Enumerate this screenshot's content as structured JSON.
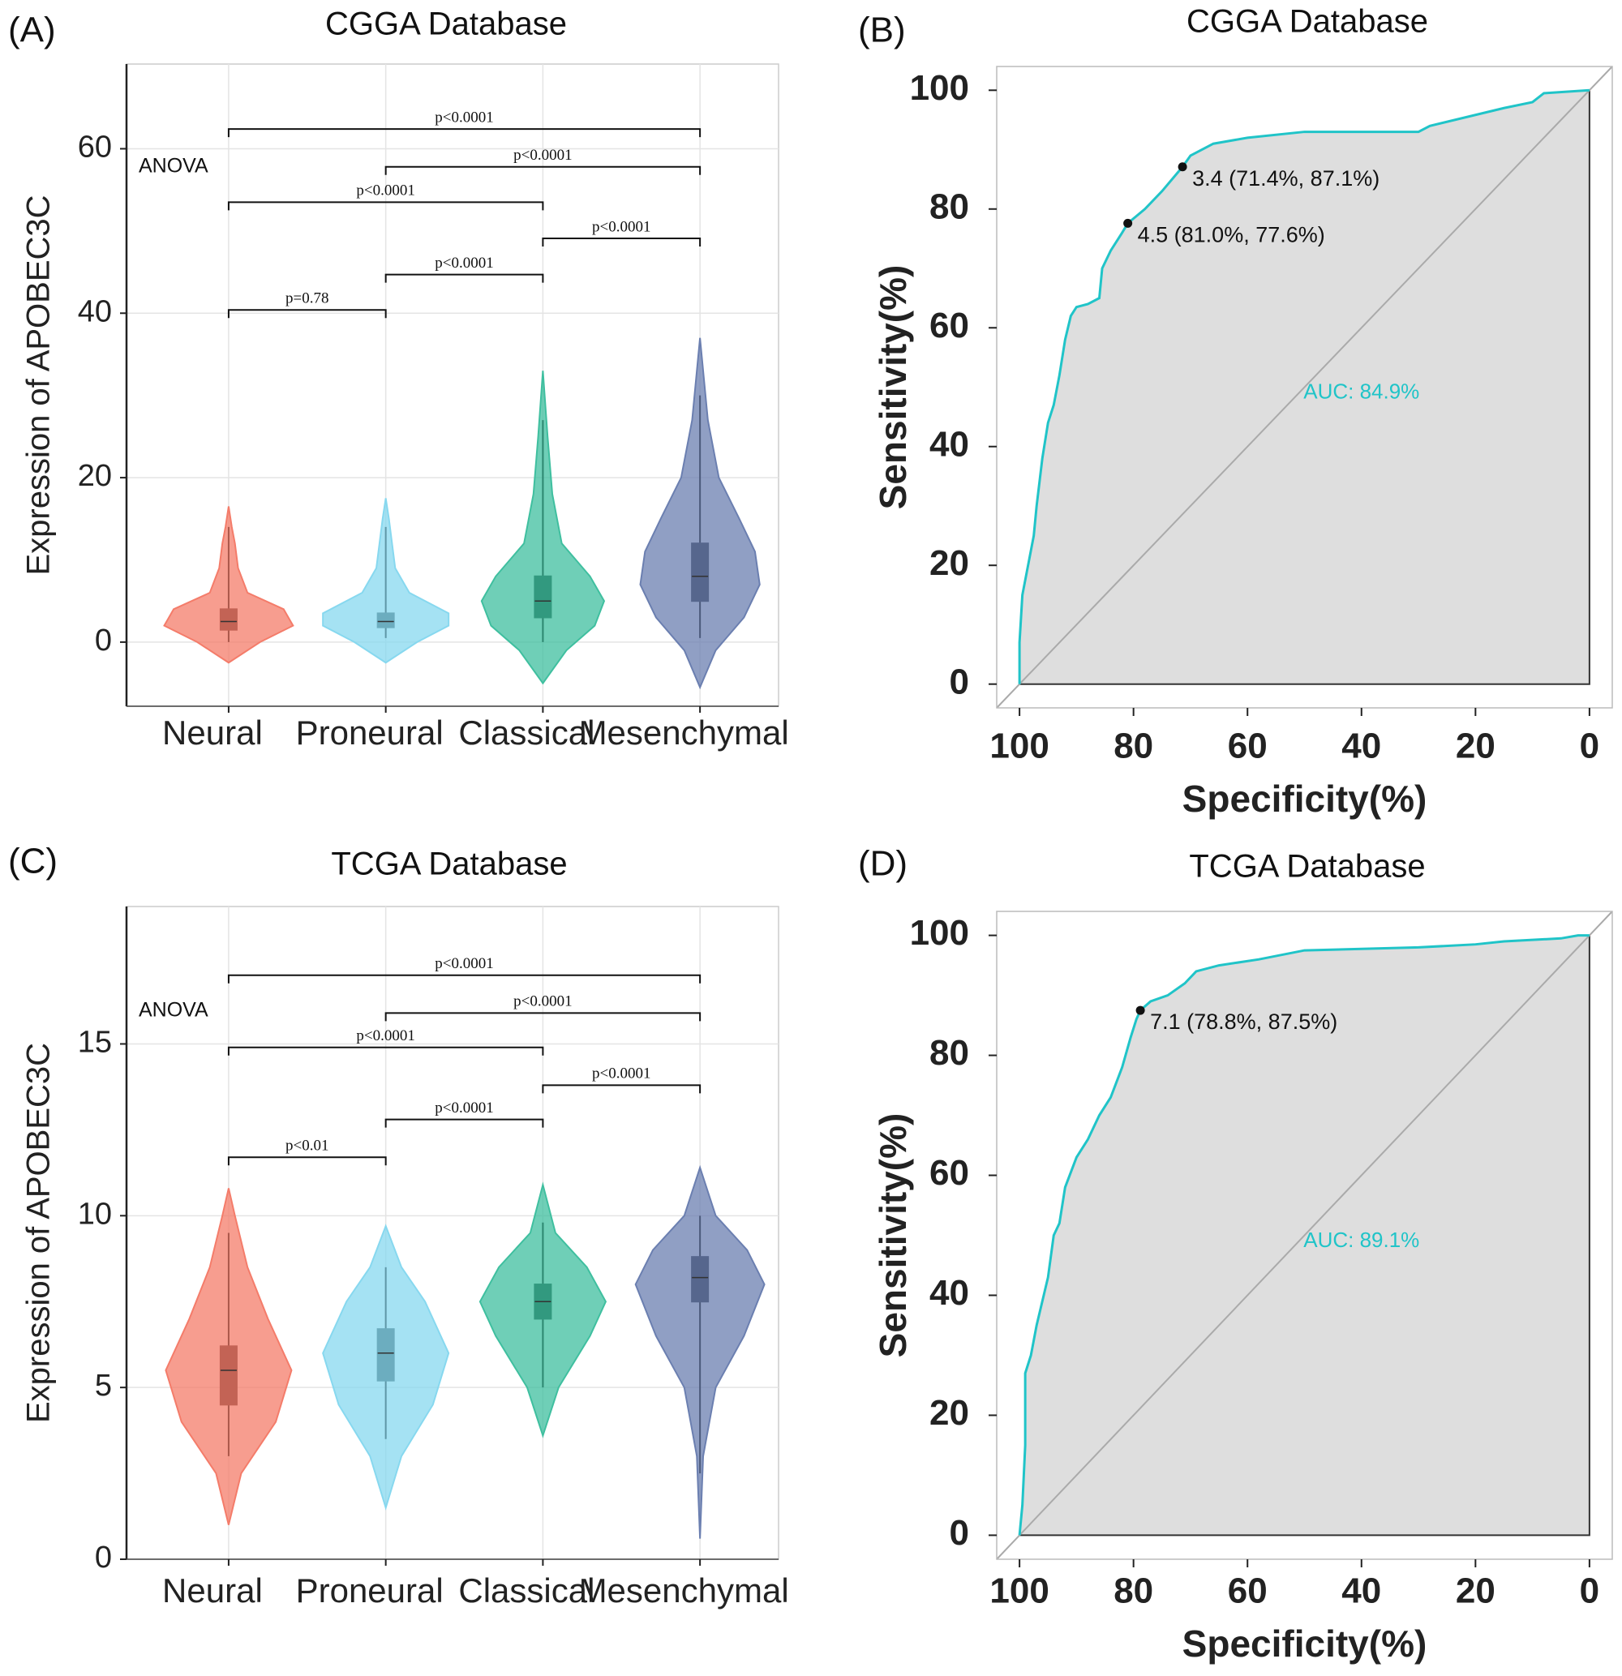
{
  "chart_data": [
    {
      "type": "violin",
      "panel_label": "(A)",
      "title": "CGGA Database",
      "y_label": "Expression of APOBEC3C",
      "annotation": "ANOVA",
      "grid": true,
      "categories": [
        "Neural",
        "Proneural",
        "Classical",
        "Mesenchymal"
      ],
      "colors": [
        "#f47c6a",
        "#87d8ef",
        "#3fbf9f",
        "#6b7fb0"
      ],
      "ylim": [
        -7.8,
        70.3
      ],
      "yticks": [
        0,
        20,
        40,
        60
      ],
      "violins": [
        {
          "y": [
            -2.5,
            0,
            2,
            4,
            6,
            9,
            12,
            14,
            16.5
          ],
          "width": [
            0,
            0.2,
            0.41,
            0.35,
            0.12,
            0.06,
            0.04,
            0.02,
            0
          ],
          "box": [
            0,
            1.5,
            2.5,
            4,
            14
          ]
        },
        {
          "y": [
            -2.5,
            0,
            2,
            3.5,
            6,
            9,
            12,
            15,
            17.5
          ],
          "width": [
            0,
            0.2,
            0.4,
            0.4,
            0.15,
            0.06,
            0.04,
            0.02,
            0
          ],
          "box": [
            0.5,
            1.8,
            2.5,
            3.5,
            14
          ]
        },
        {
          "y": [
            -5,
            -1,
            2,
            5,
            8,
            12,
            18,
            25,
            33
          ],
          "width": [
            0,
            0.15,
            0.33,
            0.39,
            0.3,
            0.12,
            0.06,
            0.03,
            0
          ],
          "box": [
            0,
            3,
            5,
            8,
            27
          ]
        },
        {
          "y": [
            -5.5,
            -1,
            3,
            7,
            11,
            15,
            20,
            27,
            37
          ],
          "width": [
            0,
            0.1,
            0.28,
            0.38,
            0.35,
            0.25,
            0.12,
            0.05,
            0
          ],
          "box": [
            0.5,
            5,
            8,
            12,
            30
          ]
        }
      ],
      "comparisons": [
        {
          "from": 0,
          "to": 1,
          "y": 40.4,
          "label": "p=0.78"
        },
        {
          "from": 1,
          "to": 2,
          "y": 44.7,
          "label": "p<0.0001"
        },
        {
          "from": 2,
          "to": 3,
          "y": 49.1,
          "label": "p<0.0001"
        },
        {
          "from": 0,
          "to": 2,
          "y": 53.5,
          "label": "p<0.0001"
        },
        {
          "from": 1,
          "to": 3,
          "y": 57.8,
          "label": "p<0.0001"
        },
        {
          "from": 0,
          "to": 3,
          "y": 62.4,
          "label": "p<0.0001"
        }
      ]
    },
    {
      "type": "roc",
      "panel_label": "(B)",
      "title": "CGGA Database",
      "x_label": "Specificity(%)",
      "y_label": "Sensitivity(%)",
      "color": "#20c4c8",
      "auc_label": "AUC: 84.9%",
      "xlim": [
        104,
        -4
      ],
      "ylim": [
        -4,
        104
      ],
      "xticks": [
        100,
        80,
        60,
        40,
        20,
        0
      ],
      "yticks": [
        0,
        20,
        40,
        60,
        80,
        100
      ],
      "x": [
        100,
        100,
        99.5,
        98.5,
        97.5,
        97,
        96,
        95,
        94,
        93,
        92,
        91,
        90,
        88,
        86,
        85.5,
        84,
        82,
        81,
        78,
        75,
        71.4,
        70,
        66,
        60,
        50,
        30,
        28,
        15,
        10,
        8,
        0
      ],
      "y": [
        0,
        7,
        15,
        20,
        25,
        30,
        38,
        44,
        47,
        52,
        58,
        62,
        63.5,
        64,
        65,
        70,
        73,
        76,
        77.6,
        80,
        83,
        87.1,
        89,
        91,
        92,
        93,
        93,
        94,
        97,
        98,
        99.5,
        100
      ],
      "cutpoints": [
        {
          "x": 71.4,
          "y": 87.1,
          "label": "3.4 (71.4%, 87.1%)"
        },
        {
          "x": 81.0,
          "y": 77.6,
          "label": "4.5 (81.0%, 77.6%)"
        }
      ]
    },
    {
      "type": "violin",
      "panel_label": "(C)",
      "title": "TCGA Database",
      "y_label": "Expression of APOBEC3C",
      "annotation": "ANOVA",
      "grid": true,
      "categories": [
        "Neural",
        "Proneural",
        "Classical",
        "Mesenchymal"
      ],
      "colors": [
        "#f47c6a",
        "#87d8ef",
        "#3fbf9f",
        "#6b7fb0"
      ],
      "ylim": [
        0,
        19
      ],
      "yticks": [
        0,
        5,
        10,
        15
      ],
      "violins": [
        {
          "y": [
            1,
            2.5,
            4,
            5.5,
            7,
            8.5,
            10,
            10.8
          ],
          "width": [
            0,
            0.08,
            0.3,
            0.4,
            0.25,
            0.12,
            0.04,
            0
          ],
          "box": [
            3,
            4.5,
            5.5,
            6.2,
            9.5
          ]
        },
        {
          "y": [
            1.5,
            3,
            4.5,
            6,
            7.5,
            8.5,
            9.7
          ],
          "width": [
            0,
            0.1,
            0.3,
            0.4,
            0.25,
            0.1,
            0
          ],
          "box": [
            3.5,
            5.2,
            6,
            6.7,
            8.5
          ]
        },
        {
          "y": [
            3.6,
            5,
            6.5,
            7.5,
            8.5,
            9.5,
            10.9
          ],
          "width": [
            0,
            0.1,
            0.3,
            0.4,
            0.28,
            0.08,
            0
          ],
          "box": [
            5,
            7,
            7.5,
            8,
            9.8
          ]
        },
        {
          "y": [
            0.6,
            3,
            5,
            6.5,
            8,
            9,
            10,
            11.4
          ],
          "width": [
            0,
            0.02,
            0.1,
            0.28,
            0.41,
            0.3,
            0.1,
            0
          ],
          "box": [
            2.5,
            7.5,
            8.2,
            8.8,
            10
          ]
        }
      ],
      "comparisons": [
        {
          "from": 0,
          "to": 1,
          "y": 11.7,
          "label": "p<0.01"
        },
        {
          "from": 1,
          "to": 2,
          "y": 12.8,
          "label": "p<0.0001"
        },
        {
          "from": 2,
          "to": 3,
          "y": 13.8,
          "label": "p<0.0001"
        },
        {
          "from": 0,
          "to": 2,
          "y": 14.9,
          "label": "p<0.0001"
        },
        {
          "from": 1,
          "to": 3,
          "y": 15.9,
          "label": "p<0.0001"
        },
        {
          "from": 0,
          "to": 3,
          "y": 17.0,
          "label": "p<0.0001"
        }
      ]
    },
    {
      "type": "roc",
      "panel_label": "(D)",
      "title": "TCGA Database",
      "x_label": "Specificity(%)",
      "y_label": "Sensitivity(%)",
      "color": "#20c4c8",
      "auc_label": "AUC: 89.1%",
      "xlim": [
        104,
        -4
      ],
      "ylim": [
        -4,
        104
      ],
      "xticks": [
        100,
        80,
        60,
        40,
        20,
        0
      ],
      "yticks": [
        0,
        20,
        40,
        60,
        80,
        100
      ],
      "x": [
        100,
        99.5,
        99,
        99,
        98,
        97,
        95,
        94,
        93,
        92,
        90,
        88,
        86,
        84,
        82,
        80.5,
        79.5,
        78.8,
        77,
        74,
        71,
        69,
        65,
        58,
        50,
        30,
        20,
        15,
        5,
        2,
        0
      ],
      "y": [
        0,
        5,
        15,
        27,
        30,
        35,
        43,
        50,
        52,
        58,
        63,
        66,
        70,
        73,
        78,
        83,
        86,
        87.5,
        89,
        90,
        92,
        94,
        95,
        96,
        97.5,
        98,
        98.5,
        99,
        99.5,
        100,
        100
      ],
      "cutpoints": [
        {
          "x": 78.8,
          "y": 87.5,
          "label": "7.1 (78.8%, 87.5%)"
        }
      ]
    }
  ]
}
